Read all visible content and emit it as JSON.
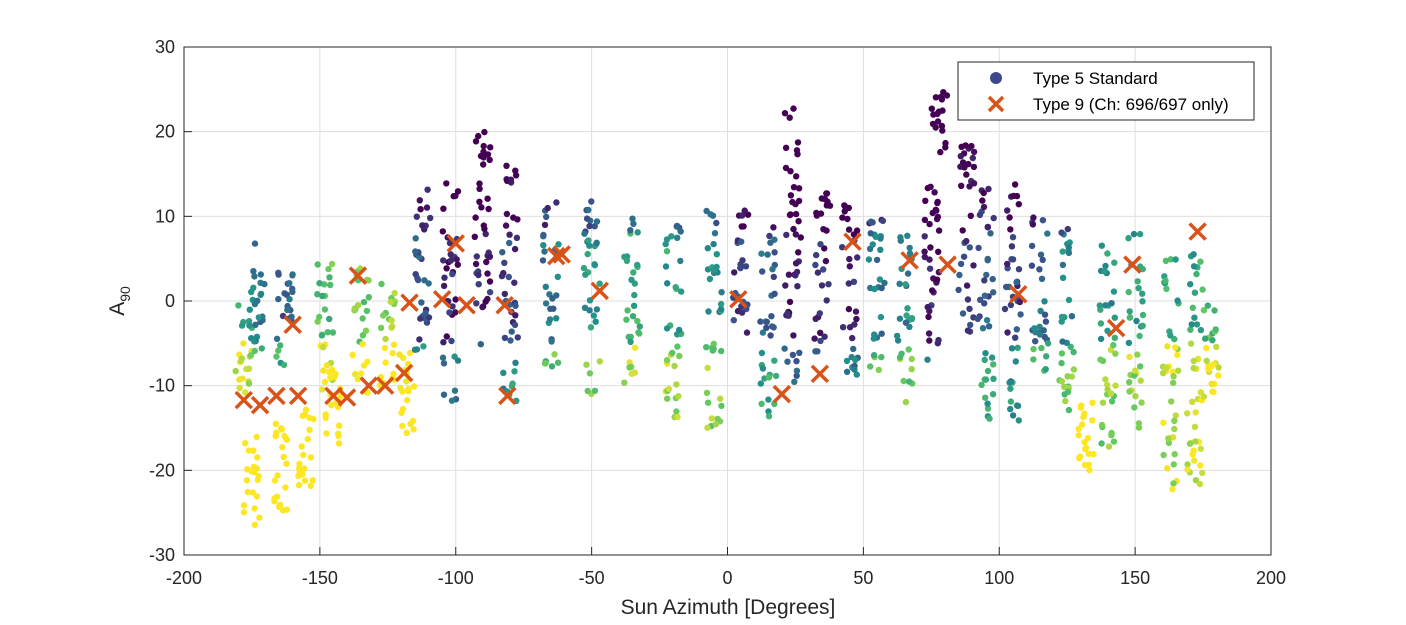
{
  "chart_data": {
    "type": "scatter",
    "title": "",
    "xlabel": "Sun Azimuth [Degrees]",
    "ylabel_main": "A",
    "ylabel_sub": "90",
    "xlim": [
      -200,
      200
    ],
    "ylim": [
      -30,
      30
    ],
    "xticks": [
      "-200",
      "-150",
      "-100",
      "-50",
      "0",
      "50",
      "100",
      "150",
      "200"
    ],
    "yticks": [
      "30",
      "20",
      "10",
      "0",
      "-10",
      "-20",
      "-30"
    ],
    "grid": true,
    "legend_position": "top-right",
    "colormap": "viridis",
    "colormap_colors": [
      "#440154",
      "#3b528b",
      "#21918c",
      "#5ec962",
      "#fde725"
    ],
    "series": [
      {
        "name": "Type 5 Standard",
        "marker": "circle",
        "color": "#3b4a8c",
        "note_colors": "points colored by a viridis colormap; columns of points at roughly every 3 degrees of azimuth from -180 to 180",
        "clusters": [
          {
            "x": -178,
            "ymin": -12,
            "ymax": 1,
            "c": 0.6
          },
          {
            "x": -175,
            "ymin": -28,
            "ymax": -16,
            "c": 1.0
          },
          {
            "x": -173,
            "ymin": -6,
            "ymax": 7,
            "c": 0.4
          },
          {
            "x": -165,
            "ymin": -25,
            "ymax": -14,
            "c": 1.0
          },
          {
            "x": -163,
            "ymin": -8,
            "ymax": 6,
            "c": 0.3
          },
          {
            "x": -155,
            "ymin": -22,
            "ymax": -12,
            "c": 1.0
          },
          {
            "x": -148,
            "ymin": -12,
            "ymax": 5,
            "c": 0.7
          },
          {
            "x": -145,
            "ymin": -17,
            "ymax": -7,
            "c": 0.9
          },
          {
            "x": -135,
            "ymin": -11,
            "ymax": 4,
            "c": 0.75
          },
          {
            "x": -125,
            "ymin": -10,
            "ymax": 3,
            "c": 0.8
          },
          {
            "x": -118,
            "ymin": -16,
            "ymax": -5,
            "c": 0.8
          },
          {
            "x": -112,
            "ymin": -6,
            "ymax": 14,
            "c": 0.25
          },
          {
            "x": -102,
            "ymin": -12,
            "ymax": 14,
            "c": 0.1
          },
          {
            "x": -90,
            "ymin": -7,
            "ymax": 21,
            "c": 0.1
          },
          {
            "x": -80,
            "ymin": -12,
            "ymax": 17,
            "c": 0.2
          },
          {
            "x": -65,
            "ymin": -8,
            "ymax": 12,
            "c": 0.4
          },
          {
            "x": -50,
            "ymin": -11,
            "ymax": 12,
            "c": 0.5
          },
          {
            "x": -35,
            "ymin": -10,
            "ymax": 10,
            "c": 0.6
          },
          {
            "x": -20,
            "ymin": -14,
            "ymax": 10,
            "c": 0.55
          },
          {
            "x": -5,
            "ymin": -15,
            "ymax": 11,
            "c": 0.5
          },
          {
            "x": 5,
            "ymin": -4,
            "ymax": 11,
            "c": 0.2
          },
          {
            "x": 15,
            "ymin": -14,
            "ymax": 9,
            "c": 0.3
          },
          {
            "x": 24,
            "ymin": -10,
            "ymax": 23,
            "c": 0.05
          },
          {
            "x": 35,
            "ymin": -6,
            "ymax": 13,
            "c": 0.1
          },
          {
            "x": 45,
            "ymin": -9,
            "ymax": 12,
            "c": 0.1
          },
          {
            "x": 55,
            "ymin": -9,
            "ymax": 10,
            "c": 0.4
          },
          {
            "x": 65,
            "ymin": -12,
            "ymax": 8,
            "c": 0.45
          },
          {
            "x": 75,
            "ymin": -9,
            "ymax": 14,
            "c": 0.1
          },
          {
            "x": 78,
            "ymin": 17,
            "ymax": 25,
            "c": 0.05
          },
          {
            "x": 88,
            "ymin": -4,
            "ymax": 19,
            "c": 0.2
          },
          {
            "x": 95,
            "ymin": -14,
            "ymax": 14,
            "c": 0.3
          },
          {
            "x": 105,
            "ymin": -15,
            "ymax": 14,
            "c": 0.2
          },
          {
            "x": 115,
            "ymin": -9,
            "ymax": 11,
            "c": 0.35
          },
          {
            "x": 125,
            "ymin": -13,
            "ymax": 9,
            "c": 0.45
          },
          {
            "x": 132,
            "ymin": -22,
            "ymax": -12,
            "c": 1.0
          },
          {
            "x": 140,
            "ymin": -18,
            "ymax": 8,
            "c": 0.5
          },
          {
            "x": 150,
            "ymin": -15,
            "ymax": 8,
            "c": 0.55
          },
          {
            "x": 163,
            "ymin": -23,
            "ymax": 5,
            "c": 0.6
          },
          {
            "x": 172,
            "ymin": -22,
            "ymax": 6,
            "c": 0.6
          },
          {
            "x": 178,
            "ymin": -13,
            "ymax": 1,
            "c": 0.7
          }
        ]
      },
      {
        "name": "Type 9 (Ch: 696/697 only)",
        "marker": "x",
        "color": "#d95319",
        "points": [
          [
            -178,
            -11.7
          ],
          [
            -172,
            -12.3
          ],
          [
            -166,
            -11.2
          ],
          [
            -160,
            -2.8
          ],
          [
            -158,
            -11.2
          ],
          [
            -145,
            -11.2
          ],
          [
            -140,
            -11.4
          ],
          [
            -136,
            3.0
          ],
          [
            -132,
            -10.0
          ],
          [
            -126,
            -10.0
          ],
          [
            -119,
            -8.5
          ],
          [
            -117,
            -0.2
          ],
          [
            -105,
            0.2
          ],
          [
            -100,
            6.8
          ],
          [
            -96,
            -0.5
          ],
          [
            -82,
            -0.5
          ],
          [
            -81,
            -11.2
          ],
          [
            -61,
            5.5
          ],
          [
            -47,
            1.2
          ],
          [
            4,
            0.2
          ],
          [
            20,
            -11.0
          ],
          [
            34,
            -8.6
          ],
          [
            46,
            7.0
          ],
          [
            67,
            4.8
          ],
          [
            81,
            4.3
          ],
          [
            107,
            0.8
          ],
          [
            143,
            -3.2
          ],
          [
            149,
            4.3
          ],
          [
            173,
            8.2
          ],
          [
            -63,
            5.3
          ]
        ]
      }
    ]
  }
}
